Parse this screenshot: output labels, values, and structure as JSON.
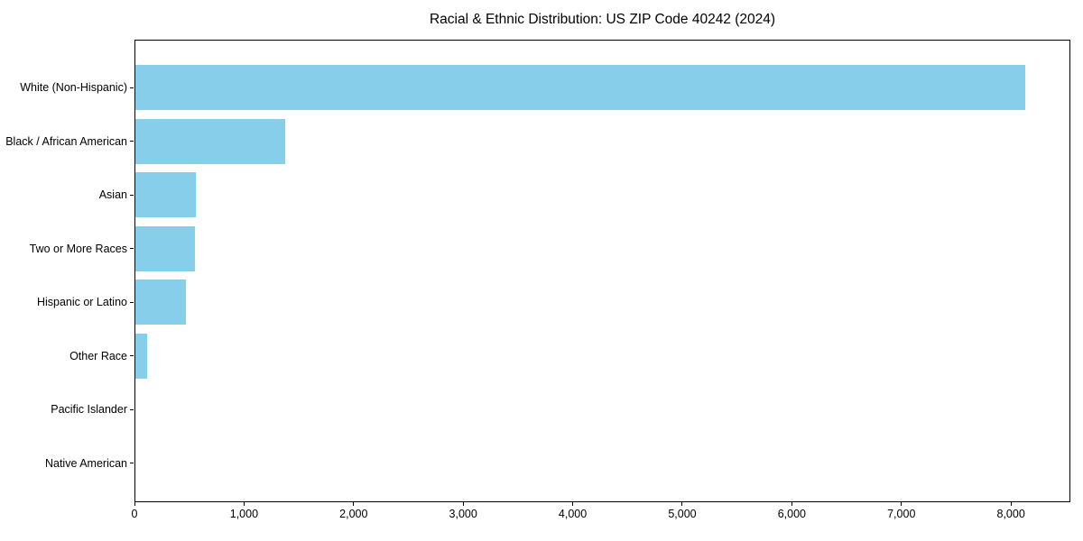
{
  "page": {
    "background": "#ffffff"
  },
  "chart_data": {
    "type": "bar",
    "orientation": "horizontal",
    "title": "Racial & Ethnic Distribution: US ZIP Code 40242 (2024)",
    "categories": [
      "White (Non-Hispanic)",
      "Black / African American",
      "Asian",
      "Two or More Races",
      "Hispanic or Latino",
      "Other Race",
      "Pacific Islander",
      "Native American"
    ],
    "values": [
      8120,
      1370,
      555,
      540,
      460,
      105,
      0,
      0
    ],
    "xlabel": "",
    "ylabel": "",
    "xlim": [
      0,
      8526
    ],
    "xticks": [
      0,
      1000,
      2000,
      3000,
      4000,
      5000,
      6000,
      7000,
      8000
    ],
    "xtick_labels": [
      "0",
      "1,000",
      "2,000",
      "3,000",
      "4,000",
      "5,000",
      "6,000",
      "7,000",
      "8,000"
    ],
    "bar_color": "#87ceeb",
    "axis_color": "#000000",
    "text_color": "#000000",
    "grid": false,
    "legend": null
  }
}
